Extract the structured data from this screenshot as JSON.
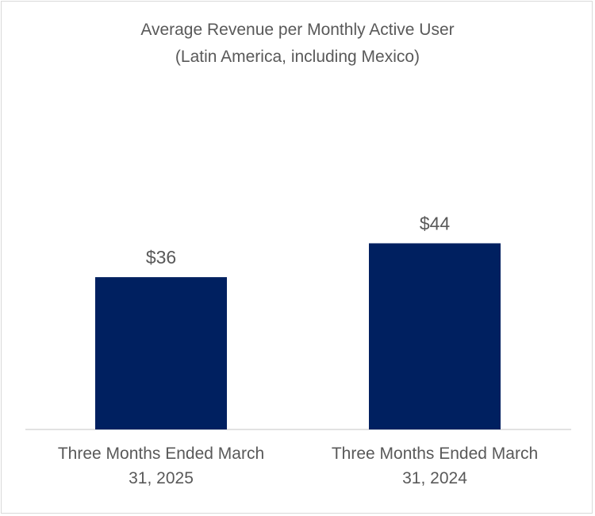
{
  "chart_data": {
    "type": "bar",
    "title": "Average Revenue per Monthly Active User",
    "subtitle": "(Latin America, including Mexico)",
    "categories": [
      "Three Months Ended March 31, 2025",
      "Three Months Ended March 31, 2024"
    ],
    "category_label_lines": [
      [
        "Three Months Ended March",
        "31, 2025"
      ],
      [
        "Three Months Ended March",
        "31, 2024"
      ]
    ],
    "values": [
      36,
      44
    ],
    "data_labels": [
      "$36",
      "$44"
    ],
    "xlabel": "",
    "ylabel": "",
    "ylim": [
      0,
      52
    ],
    "grid": false,
    "legend": "none",
    "bar_color": "#002060",
    "text_color": "#595959",
    "axis_color": "#d9d9d9"
  }
}
